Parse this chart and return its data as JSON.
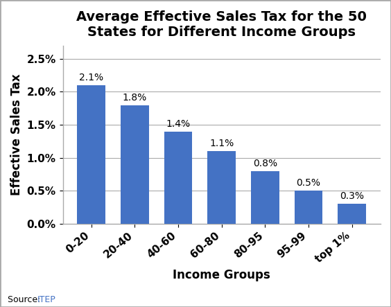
{
  "title": "Average Effective Sales Tax for the 50\nStates for Different Income Groups",
  "categories": [
    "0-20",
    "20-40",
    "40-60",
    "60-80",
    "80-95",
    "95-99",
    "top 1%"
  ],
  "values": [
    2.1,
    1.8,
    1.4,
    1.1,
    0.8,
    0.5,
    0.3
  ],
  "bar_color": "#4472C4",
  "ylabel": "Effective Sales Tax",
  "xlabel": "Income Groups",
  "ylim": [
    0,
    2.7
  ],
  "yticks": [
    0.0,
    0.5,
    1.0,
    1.5,
    2.0,
    2.5
  ],
  "ytick_labels": [
    "0.0%",
    "0.5%",
    "1.0%",
    "1.5%",
    "2.0%",
    "2.5%"
  ],
  "source_prefix": "Source: ",
  "source_label": "ITEP",
  "source_label_color": "#4472C4",
  "title_fontsize": 14,
  "label_fontsize": 12,
  "tick_fontsize": 11,
  "bar_label_fontsize": 10,
  "background_color": "#ffffff",
  "plot_bg_color": "#ffffff",
  "grid_color": "#aaaaaa",
  "border_color": "#aaaaaa"
}
